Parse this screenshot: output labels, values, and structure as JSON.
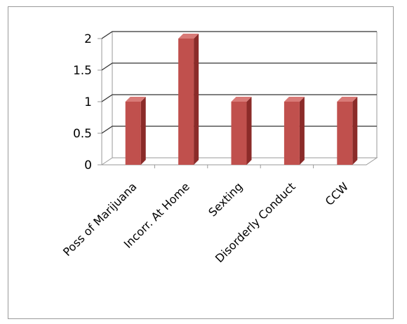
{
  "chart_data": {
    "type": "bar",
    "title": "",
    "xlabel": "",
    "ylabel": "",
    "categories": [
      "Poss of Marijuana",
      "Incorr. At Home",
      "Sexting",
      "Disorderly Conduct",
      "CCW"
    ],
    "series": [
      {
        "values": [
          1,
          2,
          1,
          1,
          1
        ]
      }
    ],
    "ylim": [
      0,
      2
    ],
    "y_ticks": [
      "0",
      "0.5",
      "1",
      "1.5",
      "2"
    ],
    "grid": true,
    "legend": "none",
    "three_d": true,
    "colors": {
      "bar_front": "#c0504d",
      "bar_side": "#8b2b29",
      "bar_top": "#d87a77",
      "gridline": "#333333",
      "wall": "#9a9a9a"
    }
  }
}
